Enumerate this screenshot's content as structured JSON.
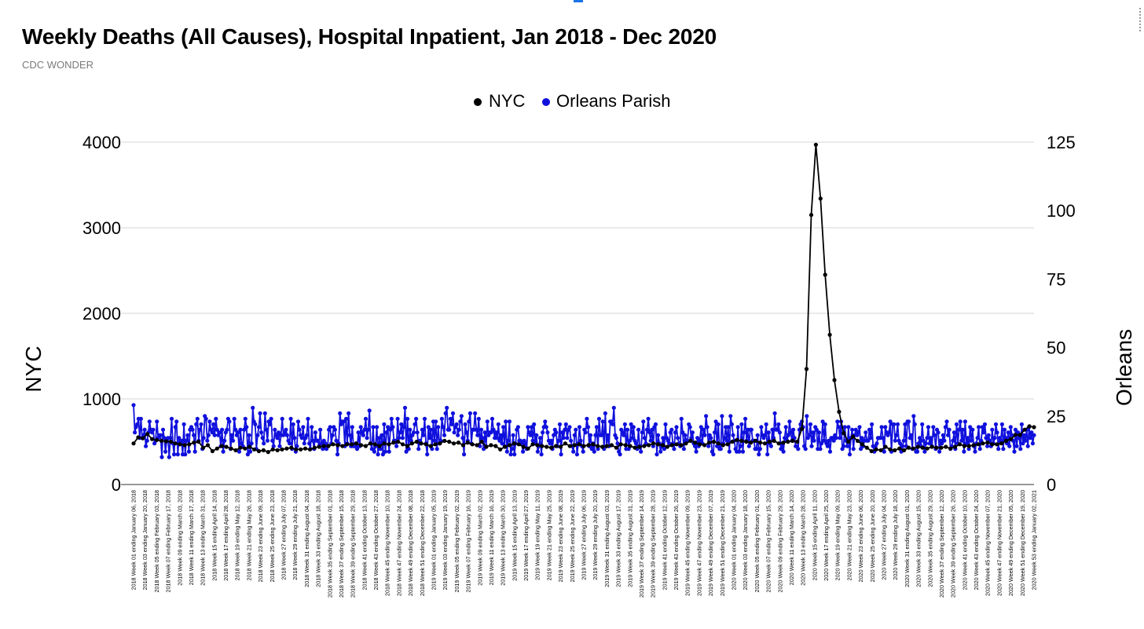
{
  "title": "Weekly Deaths (All Causes), Hospital Inpatient, Jan 2018 - Dec 2020",
  "subtitle": "CDC WONDER",
  "colors": {
    "nyc": "#000000",
    "orleans": "#1010dd",
    "grid": "#d6d6d6"
  },
  "chart_data": {
    "type": "line",
    "title": "Weekly Deaths (All Causes), Hospital Inpatient, Jan 2018 - Dec 2020",
    "subtitle": "CDC WONDER",
    "legend_position": "top-center",
    "grid": true,
    "y_left": {
      "label": "NYC",
      "range": [
        0,
        4000
      ],
      "ticks": [
        0,
        1000,
        2000,
        3000,
        4000
      ]
    },
    "y_right": {
      "label": "Orleans",
      "range": [
        0,
        125
      ],
      "ticks": [
        0,
        25,
        50,
        75,
        100,
        125
      ]
    },
    "x_tick_labels": [
      "2018 Week 01 ending January 06, 2018",
      "2018 Week 03 ending January 20, 2018",
      "2018 Week 05 ending February 03, 2018",
      "2018 Week 07 ending February 17, 2018",
      "2018 Week 09 ending March 03, 2018",
      "2018 Week 11 ending March 17, 2018",
      "2018 Week 13 ending March 31, 2018",
      "2018 Week 15 ending April 14, 2018",
      "2018 Week 17 ending April 28, 2018",
      "2018 Week 19 ending May 12, 2018",
      "2018 Week 21 ending May 26, 2018",
      "2018 Week 23 ending June 09, 2018",
      "2018 Week 25 ending June 23, 2018",
      "2018 Week 27 ending July 07, 2018",
      "2018 Week 29 ending July 21, 2018",
      "2018 Week 31 ending August 04, 2018",
      "2018 Week 33 ending August 18, 2018",
      "2018 Week 35 ending September 01, 2018",
      "2018 Week 37 ending September 15, 2018",
      "2018 Week 39 ending September 29, 2018",
      "2018 Week 41 ending October 13, 2018",
      "2018 Week 43 ending October 27, 2018",
      "2018 Week 45 ending November 10, 2018",
      "2018 Week 47 ending November 24, 2018",
      "2018 Week 49 ending December 08, 2018",
      "2018 Week 51 ending December 22, 2018",
      "2019 Week 01 ending January 05, 2019",
      "2019 Week 03 ending January 19, 2019",
      "2019 Week 05 ending February 02, 2019",
      "2019 Week 07 ending February 16, 2019",
      "2019 Week 09 ending March 02, 2019",
      "2019 Week 11 ending March 16, 2019",
      "2019 Week 13 ending March 30, 2019",
      "2019 Week 15 ending April 13, 2019",
      "2019 Week 17 ending April 27, 2019",
      "2019 Week 19 ending May 11, 2019",
      "2019 Week 21 ending May 25, 2019",
      "2019 Week 23 ending June 08, 2019",
      "2019 Week 25 ending June 22, 2019",
      "2019 Week 27 ending July 06, 2019",
      "2019 Week 29 ending July 20, 2019",
      "2019 Week 31 ending August 03, 2019",
      "2019 Week 33 ending August 17, 2019",
      "2019 Week 35 ending August 31, 2019",
      "2019 Week 37 ending September 14, 2019",
      "2019 Week 39 ending September 28, 2019",
      "2019 Week 41 ending October 12, 2019",
      "2019 Week 43 ending October 26, 2019",
      "2019 Week 45 ending November 09, 2019",
      "2019 Week 47 ending November 23, 2019",
      "2019 Week 49 ending December 07, 2019",
      "2019 Week 51 ending December 21, 2019",
      "2020 Week 01 ending January 04, 2020",
      "2020 Week 03 ending January 18, 2020",
      "2020 Week 05 ending February 01, 2020",
      "2020 Week 07 ending February 15, 2020",
      "2020 Week 09 ending February 29, 2020",
      "2020 Week 11 ending March 14, 2020",
      "2020 Week 13 ending March 28, 2020",
      "2020 Week 15 ending April 11, 2020",
      "2020 Week 17 ending April 25, 2020",
      "2020 Week 19 ending May 09, 2020",
      "2020 Week 21 ending May 23, 2020",
      "2020 Week 23 ending June 06, 2020",
      "2020 Week 25 ending June 20, 2020",
      "2020 Week 27 ending July 04, 2020",
      "2020 Week 29 ending July 18, 2020",
      "2020 Week 31 ending August 01, 2020",
      "2020 Week 33 ending August 15, 2020",
      "2020 Week 35 ending August 29, 2020",
      "2020 Week 37 ending September 12, 2020",
      "2020 Week 39 ending September 26, 2020",
      "2020 Week 41 ending October 10, 2020",
      "2020 Week 43 ending October 24, 2020",
      "2020 Week 45 ending November 07, 2020",
      "2020 Week 47 ending November 21, 2020",
      "2020 Week 49 ending December 05, 2020",
      "2020 Week 51 ending December 19, 2020",
      "2020 Week 53 ending January 02, 2021"
    ],
    "series": [
      {
        "name": "NYC",
        "axis": "left",
        "values": [
          480,
          550,
          540,
          590,
          530,
          520,
          510,
          505,
          500,
          480,
          470,
          460,
          470,
          490,
          500,
          430,
          460,
          390,
          420,
          450,
          440,
          420,
          400,
          430,
          420,
          440,
          410,
          390,
          400,
          380,
          410,
          400,
          410,
          420,
          430,
          410,
          410,
          420,
          410,
          430,
          440,
          450,
          450,
          470,
          460,
          450,
          470,
          470,
          480,
          460,
          450,
          480,
          470,
          450,
          480,
          470,
          490,
          500,
          470,
          450,
          480,
          500,
          480,
          470,
          450,
          470,
          480,
          510,
          500,
          480,
          490,
          460,
          490,
          470,
          460,
          500,
          440,
          460,
          450,
          410,
          440,
          460,
          480,
          470,
          440,
          420,
          470,
          460,
          450,
          440,
          430,
          450,
          440,
          480,
          450,
          460,
          470,
          450,
          460,
          470,
          450,
          440,
          450,
          460,
          430,
          470,
          460,
          450,
          430,
          440,
          450,
          460,
          480,
          470,
          460,
          440,
          460,
          470,
          460,
          480,
          510,
          490,
          470,
          460,
          490,
          500,
          480,
          460,
          470,
          500,
          520,
          510,
          500,
          490,
          510,
          490,
          480,
          500,
          510,
          480,
          490,
          500,
          510,
          500,
          650,
          1350,
          3150,
          3970,
          3340,
          2450,
          1750,
          1220,
          850,
          600,
          500,
          560,
          510,
          470,
          430,
          390,
          410,
          400,
          440,
          410,
          400,
          420,
          400,
          430,
          420,
          440,
          430,
          420,
          440,
          430,
          430,
          440,
          420,
          440,
          470,
          450,
          450,
          460,
          470,
          480,
          490,
          470,
          470,
          480,
          510,
          530,
          580,
          580,
          640,
          680,
          670
        ]
      },
      {
        "name": "Orleans Parish",
        "axis": "right",
        "values": [
          29,
          19,
          21,
          22,
          24,
          17,
          24,
          17,
          18,
          20,
          14,
          16,
          19,
          23,
          20,
          19,
          20,
          15,
          16,
          23,
          17,
          18,
          18,
          10,
          20,
          17,
          12,
          16,
          17,
          10,
          17,
          24,
          15,
          11,
          21,
          23,
          11,
          17,
          15,
          16,
          11,
          22,
          11,
          16,
          18,
          12,
          20,
          21,
          20,
          18,
          12,
          22,
          24,
          16,
          20,
          22,
          13,
          17,
          25,
          24,
          16,
          18,
          23,
          20,
          19,
          22,
          18,
          24,
          20,
          18,
          19,
          14,
          20,
          12,
          16,
          19,
          20,
          24,
          23,
          13,
          18,
          16,
          24,
          20,
          18,
          19,
          12,
          20,
          15,
          14,
          20,
          24,
          21,
          11,
          18,
          12,
          15,
          28,
          23,
          22,
          13,
          18,
          21,
          26,
          19,
          17,
          15,
          26,
          20,
          16,
          23,
          22,
          24,
          16,
          14,
          20,
          18,
          17,
          19,
          14,
          18,
          24,
          18,
          19,
          20,
          18,
          16,
          15,
          24,
          13,
          22,
          17,
          12,
          14,
          23,
          20,
          18,
          17,
          21,
          15,
          17,
          18,
          24,
          15,
          13,
          21,
          16,
          13,
          19,
          16,
          16,
          14,
          20,
          15,
          13,
          16,
          15,
          13,
          14,
          20,
          21,
          15,
          18,
          21,
          20,
          16,
          11,
          15,
          26,
          22,
          23,
          23,
          14,
          24,
          15,
          26,
          18,
          14,
          21,
          14,
          14,
          15,
          13,
          19,
          14,
          21,
          19,
          18,
          20,
          24,
          17,
          20,
          27,
          15,
          13,
          21,
          12,
          14,
          21,
          11,
          17,
          13,
          18,
          11,
          22,
          12,
          19,
          21,
          12,
          20,
          24,
          21,
          16,
          16,
          14,
          24,
          17,
          19,
          22,
          17,
          21,
          28,
          12,
          24,
          13,
          20,
          16,
          18,
          19,
          22,
          24,
          19,
          13,
          16,
          15,
          20,
          18,
          24,
          15,
          11,
          21,
          17,
          20,
          13,
          23,
          16,
          23,
          13,
          21,
          15,
          16,
          24,
          21,
          18,
          26,
          28,
          20,
          20,
          24,
          22,
          26,
          19,
          21,
          22,
          18,
          20,
          23,
          25,
          17,
          11,
          22,
          19,
          16,
          23,
          26,
          15,
          20,
          20,
          26,
          20,
          18,
          24,
          14,
          20,
          17,
          13,
          19,
          14,
          23,
          18,
          19,
          19,
          24,
          20,
          17,
          19,
          17,
          22,
          16,
          18,
          15,
          21,
          14,
          23,
          12,
          16,
          23,
          11,
          13,
          18,
          11,
          15,
          20,
          21,
          16,
          16,
          15,
          12,
          16,
          15,
          13,
          21,
          19,
          18,
          21,
          16,
          22,
          15,
          18,
          12,
          14,
          17,
          11,
          19,
          21,
          23,
          21,
          19,
          16,
          15,
          16,
          13,
          18,
          20,
          19,
          14,
          16,
          22,
          11,
          19,
          17,
          20,
          22,
          17,
          20,
          21,
          16,
          14,
          12,
          18,
          20,
          11,
          15,
          21,
          16,
          14,
          12,
          20,
          19,
          24,
          21,
          14,
          18,
          13,
          15,
          12,
          18,
          21,
          13,
          24,
          18,
          18,
          23,
          13,
          26,
          14,
          18,
          14,
          23,
          23,
          22,
          28,
          18,
          17,
          15,
          12,
          11,
          20,
          19,
          18,
          22,
          13,
          20,
          13,
          16,
          22,
          17,
          21,
          16,
          15,
          13,
          20,
          14,
          12,
          19,
          23,
          17,
          15,
          20,
          24,
          19,
          16,
          20,
          14,
          21,
          22,
          11,
          18,
          15,
          12,
          14,
          17,
          13,
          22,
          17,
          16,
          15,
          19,
          20,
          15,
          13,
          19,
          21,
          17,
          15,
          14,
          24,
          19,
          13,
          18,
          16,
          16,
          22,
          21,
          17,
          19,
          15,
          14,
          12,
          17,
          14,
          16,
          21,
          15,
          20,
          18,
          25,
          21,
          14,
          18,
          17,
          12,
          11,
          19,
          23,
          14,
          22,
          13,
          13,
          25,
          15,
          17,
          21,
          16,
          21,
          12,
          25,
          22,
          18,
          16,
          13,
          12,
          21,
          12,
          14,
          22,
          12,
          19,
          24,
          16,
          20,
          14,
          20,
          20,
          16,
          16,
          13,
          13,
          18,
          11,
          13,
          21,
          18,
          17,
          18,
          22,
          11,
          19,
          15,
          14,
          20,
          17,
          26,
          20,
          20,
          22,
          19,
          13,
          15,
          12,
          17,
          21,
          16,
          18,
          23,
          19,
          16,
          20,
          17,
          14,
          14,
          13,
          20,
          22,
          23,
          21,
          14,
          13,
          25,
          17,
          18,
          22,
          14,
          19,
          16,
          21,
          20,
          13,
          19,
          13,
          15,
          23,
          16,
          22,
          15,
          14,
          16,
          12,
          17,
          17,
          16,
          18,
          17,
          23,
          21,
          17,
          23,
          13,
          14,
          21,
          16,
          14,
          21,
          11,
          17,
          20,
          13,
          18,
          20,
          18,
          19,
          21,
          13,
          17,
          14,
          16,
          19,
          16,
          16,
          20,
          17,
          22,
          14,
          12,
          14,
          15,
          17,
          17,
          17,
          21,
          17,
          12,
          21,
          19,
          18,
          19,
          23,
          12,
          22,
          22,
          16,
          18,
          22,
          16,
          15,
          12,
          14,
          16,
          22,
          14,
          23,
          23,
          17,
          18,
          13,
          25,
          22,
          12,
          12,
          15,
          17,
          14,
          22,
          16,
          12,
          15,
          17,
          21,
          15,
          17,
          14,
          21,
          18,
          13,
          20,
          19,
          12,
          16,
          15,
          18,
          16,
          21,
          23,
          18,
          20,
          13,
          14,
          16,
          19,
          13,
          22,
          15,
          20,
          23,
          16,
          20,
          12,
          23,
          15,
          17,
          13,
          21,
          16,
          20,
          14,
          12,
          15,
          17,
          21,
          13,
          16,
          21,
          19,
          22,
          17,
          14,
          18,
          16,
          14,
          20,
          15,
          17,
          22,
          19,
          13,
          17,
          16,
          22,
          13,
          20,
          17,
          15,
          19,
          14,
          21,
          18,
          16,
          12,
          20,
          14,
          19,
          17,
          13,
          22,
          15,
          18,
          16,
          20,
          14,
          21,
          17,
          19,
          15,
          18
        ]
      }
    ]
  }
}
